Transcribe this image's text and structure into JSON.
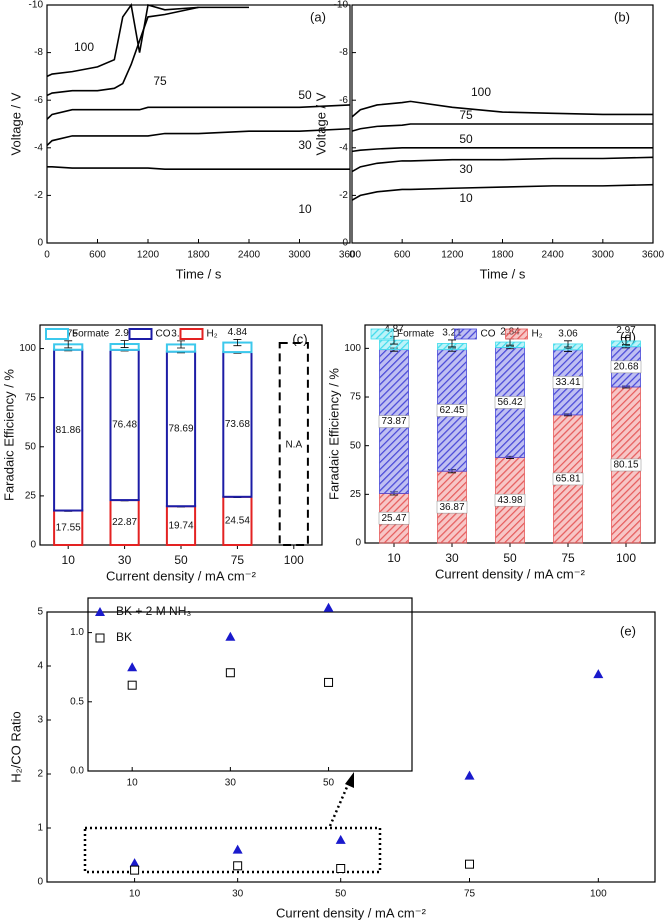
{
  "chart_data": [
    {
      "type": "line",
      "label": "(a)",
      "xlabel": "Time / s",
      "ylabel": "Voltage / V",
      "x": [
        0,
        60,
        300,
        600,
        800,
        900,
        1000,
        1100,
        1200,
        1400,
        1800,
        2400,
        3000,
        3600
      ],
      "series": [
        {
          "name": "100",
          "color": "#000000",
          "values": [
            -7.0,
            -7.1,
            -7.2,
            -7.4,
            -7.7,
            -9.5,
            -10.0,
            -8.0,
            -10.0,
            -9.8,
            -9.9,
            -9.9,
            null,
            null
          ]
        },
        {
          "name": "75",
          "color": "#000000",
          "values": [
            -6.2,
            -6.3,
            -6.4,
            -6.4,
            -6.5,
            -6.7,
            -7.5,
            -8.5,
            -9.5,
            -9.6,
            -9.9,
            null,
            null,
            null
          ]
        },
        {
          "name": "50",
          "color": "#000000",
          "values": [
            -5.2,
            -5.4,
            -5.6,
            -5.6,
            -5.6,
            -5.6,
            -5.6,
            -5.6,
            -5.7,
            -5.7,
            -5.7,
            -5.7,
            -5.7,
            -5.8
          ]
        },
        {
          "name": "30",
          "color": "#000000",
          "values": [
            -4.1,
            -4.3,
            -4.5,
            -4.5,
            -4.5,
            -4.5,
            -4.5,
            -4.5,
            -4.5,
            -4.6,
            -4.6,
            -4.7,
            -4.7,
            -4.8
          ]
        },
        {
          "name": "10",
          "color": "#000000",
          "values": [
            -3.2,
            -3.2,
            -3.15,
            -3.15,
            -3.15,
            -3.15,
            -3.15,
            -3.15,
            -3.15,
            -3.1,
            -3.1,
            -3.1,
            -3.1,
            -3.1
          ]
        }
      ],
      "xlim": [
        0,
        3600
      ],
      "xticks": [
        0,
        600,
        1200,
        1800,
        2400,
        3000,
        3600
      ],
      "ylim": [
        0,
        -10
      ],
      "yticks": [
        0,
        -2,
        -4,
        -6,
        -8,
        -10
      ]
    },
    {
      "type": "line",
      "label": "(b)",
      "xlabel": "Time / s",
      "ylabel": "Voltage / V",
      "x": [
        0,
        100,
        300,
        600,
        700,
        1200,
        1800,
        2400,
        3000,
        3600
      ],
      "series": [
        {
          "name": "100",
          "color": "#000000",
          "values": [
            -5.3,
            -5.6,
            -5.8,
            -5.9,
            -5.95,
            -5.7,
            -5.5,
            -5.45,
            -5.4,
            -5.4
          ]
        },
        {
          "name": "75",
          "color": "#000000",
          "values": [
            -4.7,
            -4.8,
            -4.9,
            -4.95,
            -5.0,
            -5.0,
            -5.0,
            -5.0,
            -5.0,
            -5.0
          ]
        },
        {
          "name": "50",
          "color": "#000000",
          "values": [
            -3.85,
            -3.9,
            -3.95,
            -4.0,
            -4.0,
            -4.0,
            -4.0,
            -4.0,
            -4.0,
            -4.0
          ]
        },
        {
          "name": "30",
          "color": "#000000",
          "values": [
            -3.0,
            -3.2,
            -3.35,
            -3.45,
            -3.45,
            -3.5,
            -3.5,
            -3.55,
            -3.55,
            -3.6
          ]
        },
        {
          "name": "10",
          "color": "#000000",
          "values": [
            -1.8,
            -2.0,
            -2.15,
            -2.25,
            -2.25,
            -2.3,
            -2.35,
            -2.4,
            -2.4,
            -2.45
          ]
        }
      ],
      "xlim": [
        0,
        3600
      ],
      "xticks": [
        0,
        600,
        1200,
        1800,
        2400,
        3000,
        3600
      ],
      "ylim": [
        0,
        -10
      ],
      "yticks": [
        0,
        -2,
        -4,
        -6,
        -8,
        -10
      ]
    },
    {
      "type": "stacked_bar",
      "label": "(c)",
      "style": "outline",
      "xlabel": "Current density / mA cm⁻²",
      "ylabel": "Faradaic Efficiency / %",
      "categories": [
        "10",
        "30",
        "50",
        "75",
        "100"
      ],
      "na_label": "N.A",
      "series": [
        {
          "name": "H₂",
          "color": "#e32222",
          "values": [
            17.55,
            22.87,
            19.74,
            24.54,
            null
          ],
          "errors": [
            0.4,
            0.4,
            0.4,
            0.4,
            null
          ]
        },
        {
          "name": "CO",
          "color": "#1c1ca6",
          "values": [
            81.86,
            76.48,
            78.69,
            73.68,
            null
          ],
          "errors": [
            0.6,
            0.6,
            0.6,
            0.6,
            null
          ]
        },
        {
          "name": "Formate",
          "color": "#3cc8ec",
          "values": [
            2.75,
            2.97,
            3.67,
            4.84,
            null
          ],
          "errors": [
            1.8,
            1.8,
            1.8,
            1.6,
            null
          ]
        }
      ],
      "ylim": [
        0,
        112
      ],
      "yticks": [
        0,
        25,
        50,
        75,
        100
      ]
    },
    {
      "type": "stacked_bar",
      "label": "(d)",
      "style": "hatched",
      "xlabel": "Current density / mA cm⁻²",
      "ylabel": "Faradaic Efficiency / %",
      "categories": [
        "10",
        "30",
        "50",
        "75",
        "100"
      ],
      "series": [
        {
          "name": "H₂",
          "color": "#e65c5c",
          "values": [
            25.47,
            36.87,
            43.98,
            65.81,
            80.15
          ],
          "errors": [
            0.8,
            0.8,
            0.6,
            0.5,
            0.5
          ]
        },
        {
          "name": "CO",
          "color": "#4848d8",
          "values": [
            73.87,
            62.45,
            56.42,
            33.41,
            20.68
          ],
          "errors": [
            0.8,
            0.8,
            0.6,
            0.8,
            0.6
          ]
        },
        {
          "name": "Formate",
          "color": "#40dcec",
          "values": [
            4.87,
            3.21,
            2.84,
            3.06,
            2.97
          ],
          "errors": [
            2.0,
            1.8,
            1.6,
            1.6,
            1.8
          ]
        }
      ],
      "ylim": [
        0,
        112
      ],
      "yticks": [
        0,
        25,
        50,
        75,
        100
      ]
    },
    {
      "type": "scatter",
      "label": "(e)",
      "xlabel": "Current density / mA cm⁻²",
      "ylabel": "H₂/CO Ratio",
      "x": [
        10,
        30,
        50,
        75,
        100
      ],
      "series": [
        {
          "color": "#1a1acc",
          "marker": "triangle",
          "values": [
            0.35,
            0.6,
            0.78,
            1.97,
            3.85
          ]
        },
        {
          "color": "#000000",
          "marker": "square-open",
          "values": [
            0.22,
            0.3,
            0.25,
            0.33,
            null
          ]
        }
      ],
      "xlim": [
        -7,
        111
      ],
      "xticks": [
        10,
        30,
        50,
        75,
        100
      ],
      "ylim": [
        0,
        5
      ],
      "yticks": [
        0,
        1,
        2,
        3,
        4,
        5
      ]
    },
    {
      "type": "scatter",
      "legend": "upper left",
      "x": [
        10,
        30,
        50
      ],
      "series": [
        {
          "name": "BK + 2 M NH₃",
          "color": "#1a1acc",
          "marker": "triangle",
          "values": [
            0.75,
            0.97,
            1.18
          ]
        },
        {
          "name": "BK",
          "color": "#000000",
          "marker": "square-open",
          "values": [
            0.62,
            0.71,
            0.64
          ]
        }
      ],
      "xlim": [
        1,
        67
      ],
      "xticks": [
        10,
        30,
        50
      ],
      "ylim": [
        0,
        1.25
      ],
      "yticks": [
        {
          "value": 0,
          "label": "0.0"
        },
        0.5,
        {
          "value": 1,
          "label": "1.0"
        }
      ]
    }
  ]
}
